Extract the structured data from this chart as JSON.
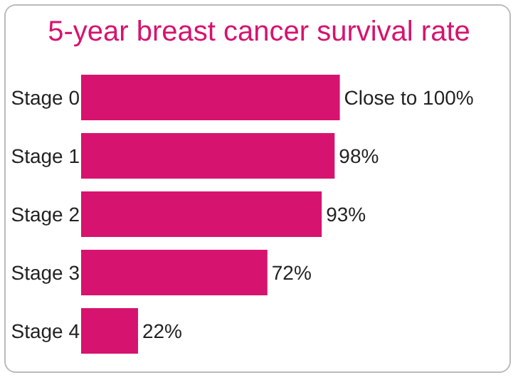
{
  "chart_data": {
    "type": "bar",
    "orientation": "horizontal",
    "title": "5-year breast cancer survival rate",
    "categories": [
      "Stage 0",
      "Stage 1",
      "Stage 2",
      "Stage 3",
      "Stage 4"
    ],
    "values": [
      100,
      98,
      93,
      72,
      22
    ],
    "value_labels": [
      "Close to 100%",
      "98%",
      "93%",
      "72%",
      "22%"
    ],
    "color": "#d6136f"
  }
}
